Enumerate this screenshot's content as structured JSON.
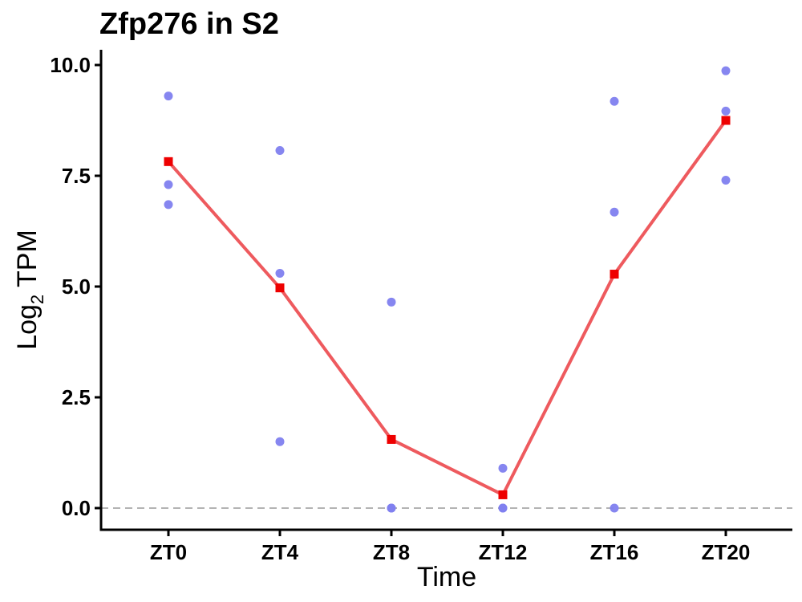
{
  "chart_data": {
    "type": "scatter",
    "title": "Zfp276 in S2",
    "xlabel": "Time",
    "ylabel_main": "Log",
    "ylabel_sub": "2",
    "ylabel_rest": " TPM",
    "categories": [
      "ZT0",
      "ZT4",
      "ZT8",
      "ZT12",
      "ZT16",
      "ZT20"
    ],
    "ylim": [
      -0.5,
      10.3
    ],
    "yticks": [
      0.0,
      2.5,
      5.0,
      7.5,
      10.0
    ],
    "ytick_labels": [
      "0.0",
      "2.5",
      "5.0",
      "7.5",
      "10.0"
    ],
    "reference_line": {
      "y": 0,
      "style": "dashed",
      "color": "#b3b3b3"
    },
    "points": {
      "color": "#7f7fef",
      "values": [
        [
          9.3,
          7.3,
          6.85
        ],
        [
          8.07,
          5.3,
          1.5
        ],
        [
          4.65,
          0.0,
          0.0
        ],
        [
          0.9,
          0.0,
          0.0
        ],
        [
          9.18,
          6.68,
          0.0
        ],
        [
          9.87,
          8.96,
          7.4
        ]
      ]
    },
    "mean_line": {
      "color": "#ee5a5e",
      "marker_color": "#ee0000",
      "values": [
        7.82,
        4.97,
        1.55,
        0.3,
        5.28,
        8.75
      ]
    },
    "grid": false,
    "legend": "none"
  }
}
